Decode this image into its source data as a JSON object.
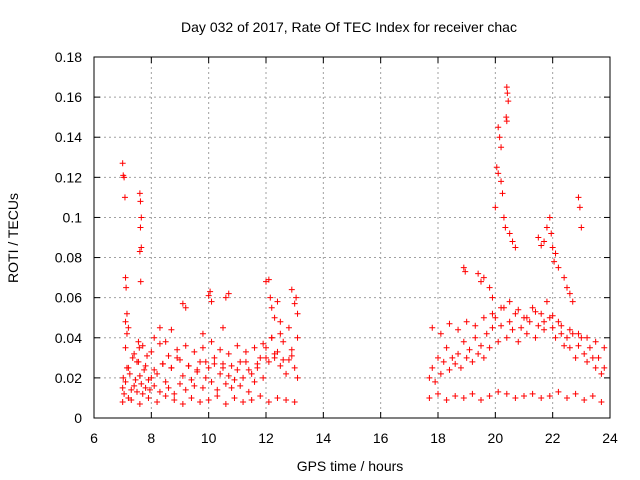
{
  "chart_data": {
    "type": "scatter",
    "title": "Day 032 of 2017, Rate Of TEC Index for receiver chac",
    "xlabel": "GPS time / hours",
    "ylabel": "ROTI / TECUs",
    "xlim": [
      6,
      24
    ],
    "ylim": [
      0,
      0.18
    ],
    "x_ticks": [
      6,
      8,
      10,
      12,
      14,
      16,
      18,
      20,
      22,
      24
    ],
    "x_tick_labels": [
      "6",
      "8",
      "10",
      "12",
      "14",
      "16",
      "18",
      "20",
      "22",
      "24"
    ],
    "y_ticks": [
      0,
      0.02,
      0.04,
      0.06,
      0.08,
      0.1,
      0.12,
      0.14,
      0.16,
      0.18
    ],
    "y_tick_labels": [
      "0",
      "0.02",
      "0.04",
      "0.06",
      "0.08",
      "0.1",
      "0.12",
      "0.14",
      "0.16",
      "0.18"
    ],
    "grid": true,
    "marker": "+",
    "color": "#ff0000",
    "series": [
      {
        "x": [
          7.0,
          7.02,
          7.05,
          7.1,
          7.15,
          7.2,
          7.25,
          7.3,
          7.35,
          7.4,
          7.45,
          7.5,
          7.55,
          7.6,
          7.65,
          7.7,
          7.75,
          7.8,
          7.85,
          7.9,
          7.95,
          8.0,
          8.1,
          8.2,
          8.3,
          8.4,
          8.5,
          8.6,
          8.7,
          8.8,
          8.9,
          9.0,
          9.1,
          9.2,
          9.3,
          9.4,
          9.5,
          9.6,
          9.7,
          9.8,
          9.9,
          10.0,
          10.1,
          10.2,
          10.3,
          10.4,
          10.5,
          10.6,
          10.7,
          10.8,
          10.9,
          11.0,
          11.1,
          11.2,
          11.3,
          11.4,
          11.5,
          11.6,
          11.7,
          11.8,
          11.9,
          12.0,
          12.1,
          12.2,
          12.3,
          12.4,
          12.5,
          12.6,
          12.7,
          12.8,
          12.9,
          13.0,
          13.1,
          7.0,
          7.02,
          7.05,
          7.08,
          7.1,
          7.12,
          7.15,
          7.2,
          7.6,
          7.62,
          7.65,
          7.62,
          7.65,
          7.6,
          7.63,
          7.1,
          7.15,
          7.55,
          7.58,
          8.1,
          8.3,
          8.5,
          8.7,
          9.1,
          9.2,
          9.8,
          10.0,
          10.05,
          10.1,
          10.6,
          10.7,
          10.5,
          12.0,
          12.1,
          12.15,
          12.2,
          12.3,
          12.4,
          12.5,
          12.9,
          13.0,
          13.05,
          13.1,
          7.0,
          7.3,
          7.6,
          7.9,
          8.2,
          8.5,
          8.8,
          9.1,
          9.4,
          9.7,
          10.0,
          10.3,
          10.6,
          10.9,
          11.2,
          11.5,
          11.8,
          12.1,
          12.4,
          12.7,
          13.0,
          7.1,
          7.4,
          7.7,
          8.0,
          8.3,
          8.6,
          8.9,
          9.2,
          9.5,
          9.8,
          10.1,
          10.4,
          10.7,
          11.0,
          11.3,
          11.6,
          11.9,
          12.2,
          12.5,
          12.8,
          13.1,
          7.2,
          7.5,
          7.8,
          8.1,
          8.4,
          8.7,
          9.0,
          9.3,
          9.6,
          9.9,
          10.2,
          10.5,
          10.8,
          11.1,
          11.4,
          11.7,
          12.0,
          12.3,
          12.6,
          12.9
        ],
        "y": [
          0.015,
          0.02,
          0.012,
          0.018,
          0.025,
          0.01,
          0.022,
          0.014,
          0.03,
          0.016,
          0.019,
          0.013,
          0.028,
          0.021,
          0.017,
          0.012,
          0.024,
          0.015,
          0.031,
          0.019,
          0.014,
          0.02,
          0.016,
          0.022,
          0.013,
          0.027,
          0.018,
          0.015,
          0.025,
          0.012,
          0.03,
          0.017,
          0.021,
          0.014,
          0.026,
          0.019,
          0.016,
          0.023,
          0.028,
          0.015,
          0.02,
          0.025,
          0.018,
          0.03,
          0.014,
          0.022,
          0.027,
          0.017,
          0.021,
          0.015,
          0.019,
          0.024,
          0.016,
          0.02,
          0.028,
          0.013,
          0.022,
          0.018,
          0.025,
          0.03,
          0.02,
          0.035,
          0.028,
          0.04,
          0.03,
          0.033,
          0.026,
          0.038,
          0.022,
          0.029,
          0.034,
          0.025,
          0.02,
          0.127,
          0.121,
          0.12,
          0.11,
          0.07,
          0.065,
          0.052,
          0.045,
          0.112,
          0.108,
          0.1,
          0.095,
          0.085,
          0.083,
          0.068,
          0.048,
          0.042,
          0.038,
          0.035,
          0.04,
          0.045,
          0.038,
          0.044,
          0.057,
          0.055,
          0.042,
          0.061,
          0.063,
          0.058,
          0.06,
          0.062,
          0.045,
          0.068,
          0.069,
          0.06,
          0.055,
          0.05,
          0.058,
          0.048,
          0.064,
          0.057,
          0.06,
          0.052,
          0.008,
          0.009,
          0.007,
          0.01,
          0.008,
          0.011,
          0.009,
          0.007,
          0.01,
          0.008,
          0.009,
          0.011,
          0.007,
          0.01,
          0.008,
          0.009,
          0.011,
          0.008,
          0.01,
          0.009,
          0.008,
          0.035,
          0.032,
          0.036,
          0.033,
          0.037,
          0.031,
          0.034,
          0.036,
          0.033,
          0.035,
          0.038,
          0.034,
          0.032,
          0.036,
          0.033,
          0.035,
          0.037,
          0.04,
          0.042,
          0.045,
          0.04,
          0.025,
          0.028,
          0.026,
          0.024,
          0.027,
          0.025,
          0.029,
          0.026,
          0.024,
          0.028,
          0.027,
          0.025,
          0.026,
          0.028,
          0.024,
          0.027,
          0.03,
          0.032,
          0.029,
          0.031
        ]
      },
      {
        "x": [
          17.7,
          17.8,
          17.9,
          18.0,
          18.1,
          18.2,
          18.3,
          18.4,
          18.5,
          18.6,
          18.7,
          18.8,
          18.9,
          19.0,
          19.1,
          19.2,
          19.3,
          19.4,
          19.5,
          19.6,
          19.7,
          19.8,
          19.9,
          20.0,
          20.1,
          20.2,
          20.3,
          20.4,
          20.5,
          20.6,
          20.7,
          20.8,
          20.9,
          21.0,
          21.1,
          21.2,
          21.3,
          21.4,
          21.5,
          21.6,
          21.7,
          21.8,
          21.9,
          22.0,
          22.1,
          22.2,
          22.3,
          22.4,
          22.5,
          22.6,
          22.7,
          22.8,
          22.9,
          23.0,
          23.1,
          23.2,
          23.3,
          23.4,
          23.5,
          23.6,
          23.7,
          23.8,
          20.4,
          20.42,
          20.45,
          20.38,
          20.4,
          20.1,
          20.15,
          20.2,
          20.05,
          20.1,
          20.2,
          20.25,
          20.0,
          20.3,
          20.35,
          20.5,
          20.6,
          20.7,
          21.5,
          21.6,
          21.7,
          21.8,
          21.9,
          21.95,
          22.0,
          22.05,
          22.1,
          22.2,
          22.9,
          22.95,
          23.0,
          22.4,
          22.5,
          22.6,
          22.7,
          18.9,
          18.95,
          19.4,
          19.5,
          19.6,
          19.8,
          19.9,
          17.7,
          18.0,
          18.3,
          18.6,
          18.9,
          19.2,
          19.5,
          19.8,
          20.1,
          20.4,
          20.7,
          21.0,
          21.3,
          21.6,
          21.9,
          22.2,
          22.5,
          22.8,
          23.1,
          23.4,
          23.7,
          17.8,
          18.1,
          18.4,
          18.7,
          19.0,
          19.3,
          19.6,
          19.9,
          20.2,
          20.5,
          20.8,
          21.1,
          21.4,
          21.7,
          22.0,
          22.3,
          22.6,
          22.9,
          23.2,
          23.5,
          23.8
        ],
        "y": [
          0.02,
          0.025,
          0.018,
          0.03,
          0.022,
          0.028,
          0.035,
          0.024,
          0.03,
          0.027,
          0.032,
          0.025,
          0.038,
          0.03,
          0.034,
          0.028,
          0.04,
          0.032,
          0.036,
          0.03,
          0.042,
          0.035,
          0.045,
          0.05,
          0.038,
          0.046,
          0.055,
          0.04,
          0.048,
          0.044,
          0.052,
          0.038,
          0.045,
          0.05,
          0.042,
          0.048,
          0.055,
          0.04,
          0.046,
          0.052,
          0.044,
          0.058,
          0.05,
          0.045,
          0.04,
          0.048,
          0.042,
          0.036,
          0.04,
          0.035,
          0.042,
          0.03,
          0.036,
          0.04,
          0.032,
          0.028,
          0.035,
          0.03,
          0.025,
          0.03,
          0.022,
          0.025,
          0.165,
          0.162,
          0.158,
          0.15,
          0.148,
          0.145,
          0.14,
          0.135,
          0.125,
          0.122,
          0.118,
          0.112,
          0.105,
          0.1,
          0.095,
          0.092,
          0.088,
          0.085,
          0.09,
          0.086,
          0.088,
          0.095,
          0.1,
          0.092,
          0.085,
          0.078,
          0.082,
          0.075,
          0.11,
          0.105,
          0.095,
          0.07,
          0.065,
          0.062,
          0.058,
          0.075,
          0.073,
          0.072,
          0.068,
          0.07,
          0.065,
          0.06,
          0.01,
          0.012,
          0.009,
          0.011,
          0.01,
          0.012,
          0.009,
          0.011,
          0.013,
          0.012,
          0.01,
          0.011,
          0.012,
          0.01,
          0.011,
          0.013,
          0.01,
          0.012,
          0.009,
          0.011,
          0.008,
          0.045,
          0.042,
          0.047,
          0.044,
          0.048,
          0.046,
          0.05,
          0.052,
          0.055,
          0.058,
          0.054,
          0.05,
          0.053,
          0.048,
          0.051,
          0.046,
          0.044,
          0.042,
          0.04,
          0.038,
          0.035
        ]
      }
    ]
  }
}
